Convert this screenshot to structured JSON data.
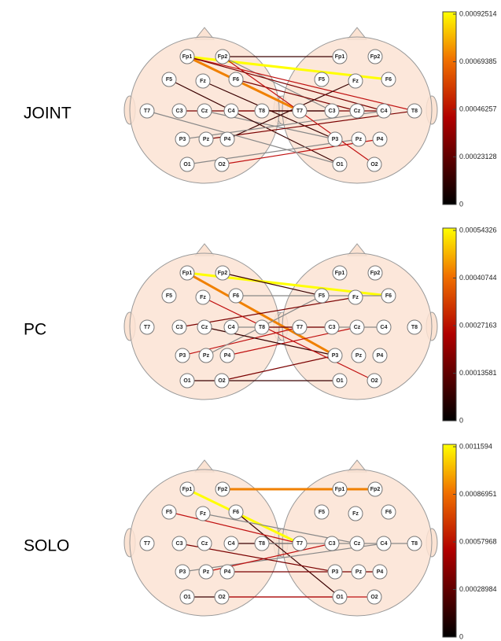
{
  "electrodes": [
    "Fp1",
    "Fp2",
    "F5",
    "Fz",
    "F6",
    "T7",
    "C3",
    "Cz",
    "C4",
    "T8",
    "P3",
    "Pz",
    "P4",
    "O1",
    "O2"
  ],
  "panels": [
    {
      "label": "JOINT",
      "colorbar": {
        "ticks": [
          0.00092514,
          0.00069385,
          0.00046257,
          0.00023128,
          0
        ]
      }
    },
    {
      "label": "PC",
      "colorbar": {
        "ticks": [
          0.00054326,
          0.00040744,
          0.00027163,
          0.00013581,
          0
        ]
      }
    },
    {
      "label": "SOLO",
      "colorbar": {
        "ticks": [
          0.0011594,
          0.00086951,
          0.00057968,
          0.00028984,
          0
        ]
      }
    }
  ]
}
